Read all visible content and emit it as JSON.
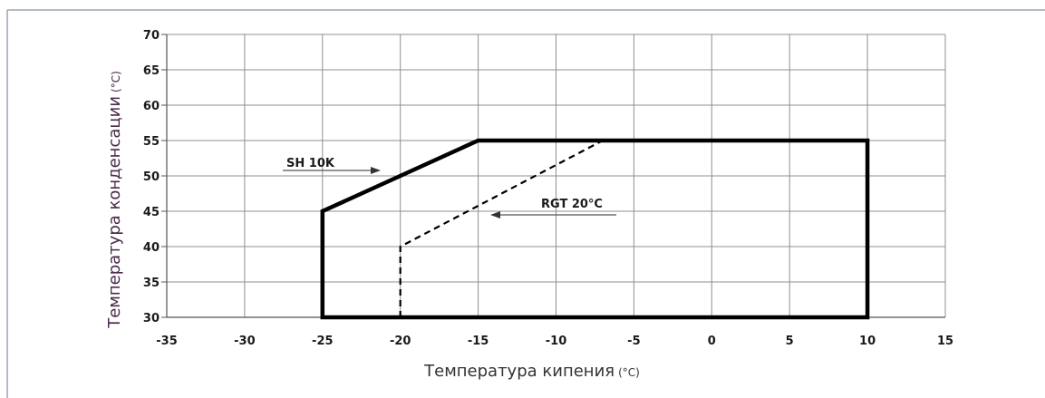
{
  "chart_data": {
    "type": "line",
    "xlabel": "Температура кипения",
    "xlabel_unit": "(°C)",
    "ylabel": "Температура конденсации",
    "ylabel_unit": "(°C)",
    "xlim": [
      -35,
      15
    ],
    "ylim": [
      30,
      70
    ],
    "x_ticks": [
      "-35",
      "-30",
      "-25",
      "-20",
      "-15",
      "-10",
      "-5",
      "0",
      "5",
      "10",
      "15"
    ],
    "y_ticks": [
      "30",
      "35",
      "40",
      "45",
      "50",
      "55",
      "60",
      "65",
      "70"
    ],
    "grid": true,
    "series": [
      {
        "name": "SH 10K",
        "style": "solid",
        "color": "#000000",
        "points": [
          [
            -25,
            30
          ],
          [
            -25,
            45
          ],
          [
            -15,
            55
          ],
          [
            10,
            55
          ],
          [
            10,
            30
          ],
          [
            -25,
            30
          ]
        ]
      },
      {
        "name": "RGT 20°C",
        "style": "dashed",
        "color": "#000000",
        "points": [
          [
            -20,
            30
          ],
          [
            -20,
            40
          ],
          [
            -7,
            55
          ]
        ]
      }
    ],
    "annotations": [
      {
        "text": "SH 10K",
        "arrow_direction": "right"
      },
      {
        "text": "RGT 20°C",
        "arrow_direction": "left"
      }
    ]
  }
}
